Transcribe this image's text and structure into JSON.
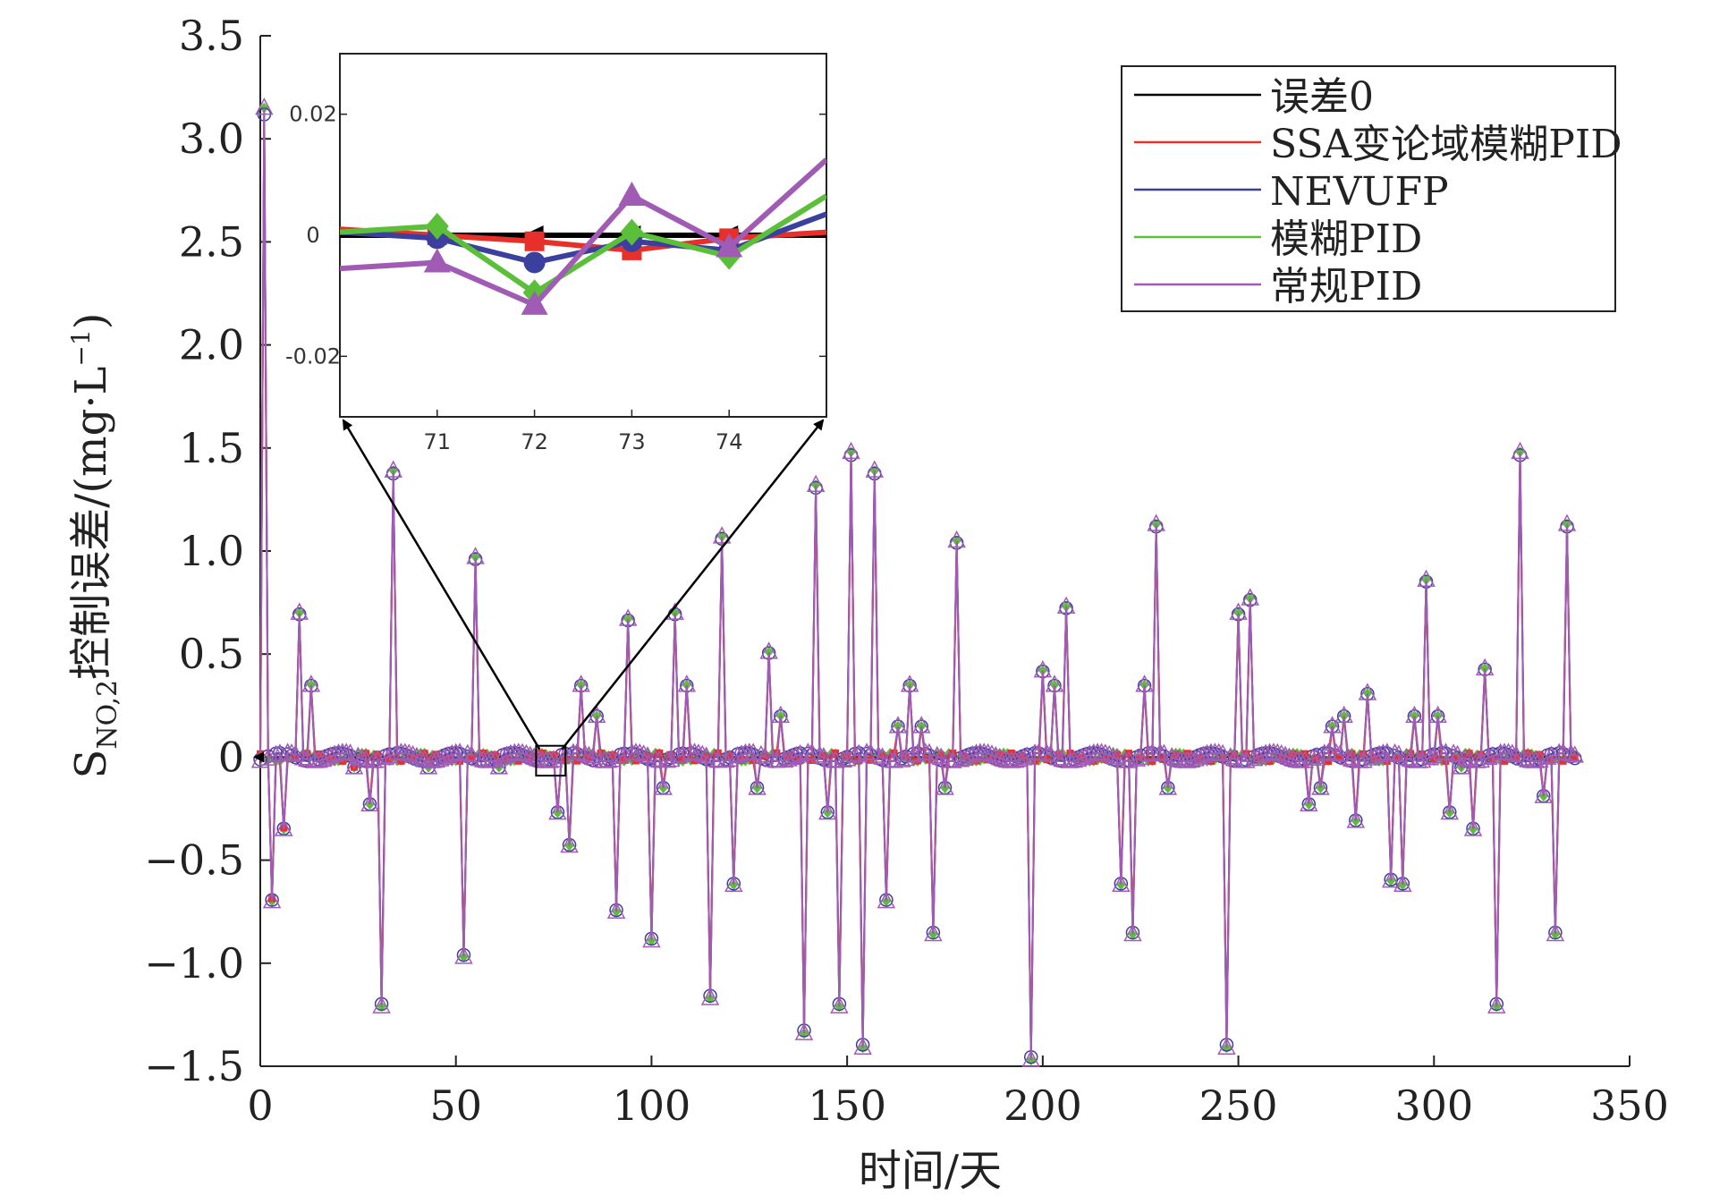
{
  "chart_data": {
    "type": "line",
    "xlabel": "时间/天",
    "ylabel_main": "S",
    "ylabel_sub": "NO,2",
    "ylabel_rest": "控制误差/(mg·L",
    "ylabel_sup": "−1",
    "ylabel_end": ")",
    "xlim": [
      0,
      350
    ],
    "ylim": [
      -1.5,
      3.5
    ],
    "xticks": [
      0,
      50,
      100,
      150,
      200,
      250,
      300,
      350
    ],
    "yticks": [
      -1.5,
      -1.0,
      -0.5,
      0,
      0.5,
      1.0,
      1.5,
      2.0,
      2.5,
      3.0,
      3.5
    ],
    "ytick_labels": [
      "−1.5",
      "−1.0",
      "−0.5",
      "0",
      "0.5",
      "1.0",
      "1.5",
      "2.0",
      "2.5",
      "3.0",
      "3.5"
    ],
    "xtick_labels": [
      "0",
      "50",
      "100",
      "150",
      "200",
      "250",
      "300",
      "350"
    ],
    "legend": {
      "placement": "top-right",
      "entries": [
        {
          "name": "误差0",
          "color": "#000000"
        },
        {
          "name": "SSA变论域模糊PID",
          "color": "#e8302a"
        },
        {
          "name": "NEVUFP",
          "color": "#3b3f9e"
        },
        {
          "name": "模糊PID",
          "color": "#5cbf3a"
        },
        {
          "name": "常规PID",
          "color": "#a05cb4"
        }
      ]
    },
    "spikes": [
      [
        1,
        3.15
      ],
      [
        3,
        -0.7
      ],
      [
        6,
        -0.35
      ],
      [
        10,
        0.7
      ],
      [
        13,
        0.35
      ],
      [
        24,
        -0.05
      ],
      [
        28,
        -0.23
      ],
      [
        31,
        -1.21
      ],
      [
        34,
        1.39
      ],
      [
        43,
        -0.05
      ],
      [
        52,
        -0.97
      ],
      [
        55,
        0.97
      ],
      [
        61,
        -0.05
      ],
      [
        76,
        -0.27
      ],
      [
        79,
        -0.43
      ],
      [
        82,
        0.35
      ],
      [
        86,
        0.2
      ],
      [
        91,
        -0.75
      ],
      [
        94,
        0.67
      ],
      [
        100,
        -0.89
      ],
      [
        103,
        -0.15
      ],
      [
        106,
        0.7
      ],
      [
        109,
        0.35
      ],
      [
        115,
        -1.17
      ],
      [
        118,
        1.07
      ],
      [
        121,
        -0.62
      ],
      [
        127,
        -0.15
      ],
      [
        130,
        0.51
      ],
      [
        133,
        0.2
      ],
      [
        139,
        -1.34
      ],
      [
        142,
        1.32
      ],
      [
        145,
        -0.27
      ],
      [
        148,
        -1.21
      ],
      [
        151,
        1.48
      ],
      [
        154,
        -1.41
      ],
      [
        157,
        1.39
      ],
      [
        160,
        -0.7
      ],
      [
        163,
        0.15
      ],
      [
        166,
        0.35
      ],
      [
        169,
        0.15
      ],
      [
        172,
        -0.86
      ],
      [
        175,
        -0.15
      ],
      [
        178,
        1.05
      ],
      [
        197,
        -1.47
      ],
      [
        200,
        0.42
      ],
      [
        203,
        0.35
      ],
      [
        206,
        0.73
      ],
      [
        220,
        -0.62
      ],
      [
        223,
        -0.86
      ],
      [
        226,
        0.35
      ],
      [
        229,
        1.13
      ],
      [
        232,
        -0.15
      ],
      [
        247,
        -1.41
      ],
      [
        250,
        0.7
      ],
      [
        253,
        0.77
      ],
      [
        268,
        -0.23
      ],
      [
        271,
        -0.15
      ],
      [
        274,
        0.15
      ],
      [
        277,
        0.2
      ],
      [
        280,
        -0.31
      ],
      [
        283,
        0.31
      ],
      [
        289,
        -0.6
      ],
      [
        292,
        -0.62
      ],
      [
        295,
        0.2
      ],
      [
        298,
        0.86
      ],
      [
        301,
        0.2
      ],
      [
        304,
        -0.27
      ],
      [
        307,
        -0.05
      ],
      [
        310,
        -0.35
      ],
      [
        313,
        0.43
      ],
      [
        316,
        -1.21
      ],
      [
        322,
        1.48
      ],
      [
        328,
        -0.19
      ],
      [
        331,
        -0.86
      ],
      [
        334,
        1.13
      ]
    ],
    "inset": {
      "xlim": [
        70,
        75
      ],
      "ylim": [
        -0.03,
        0.03
      ],
      "xticks": [
        71,
        72,
        73,
        74
      ],
      "xtick_labels": [
        "71",
        "72",
        "73",
        "74"
      ],
      "yticks": [
        0.02,
        0,
        -0.02
      ],
      "ytick_labels": [
        "0.02",
        "0",
        "-0.02"
      ],
      "x": [
        70,
        71,
        72,
        73,
        74,
        75
      ],
      "series": [
        {
          "name": "误差0",
          "color": "#000000",
          "marker": "triangle-left",
          "values": [
            0,
            0,
            0,
            0,
            0,
            0
          ]
        },
        {
          "name": "SSA变论域模糊PID",
          "color": "#e8302a",
          "marker": "square",
          "values": [
            0.001,
            0.0,
            -0.001,
            -0.0025,
            -0.0005,
            0.0005
          ]
        },
        {
          "name": "NEVUFP",
          "color": "#3b3f9e",
          "marker": "circle",
          "values": [
            0.0005,
            -0.0005,
            -0.0045,
            -0.001,
            -0.0025,
            0.0035
          ]
        },
        {
          "name": "模糊PID",
          "color": "#5cbf3a",
          "marker": "diamond",
          "values": [
            0.0005,
            0.0015,
            -0.0095,
            0.0005,
            -0.0035,
            0.0065
          ]
        },
        {
          "name": "常规PID",
          "color": "#a05cb4",
          "marker": "triangle-up",
          "values": [
            -0.0055,
            -0.0045,
            -0.0115,
            0.0065,
            -0.002,
            0.0125
          ]
        }
      ]
    }
  }
}
